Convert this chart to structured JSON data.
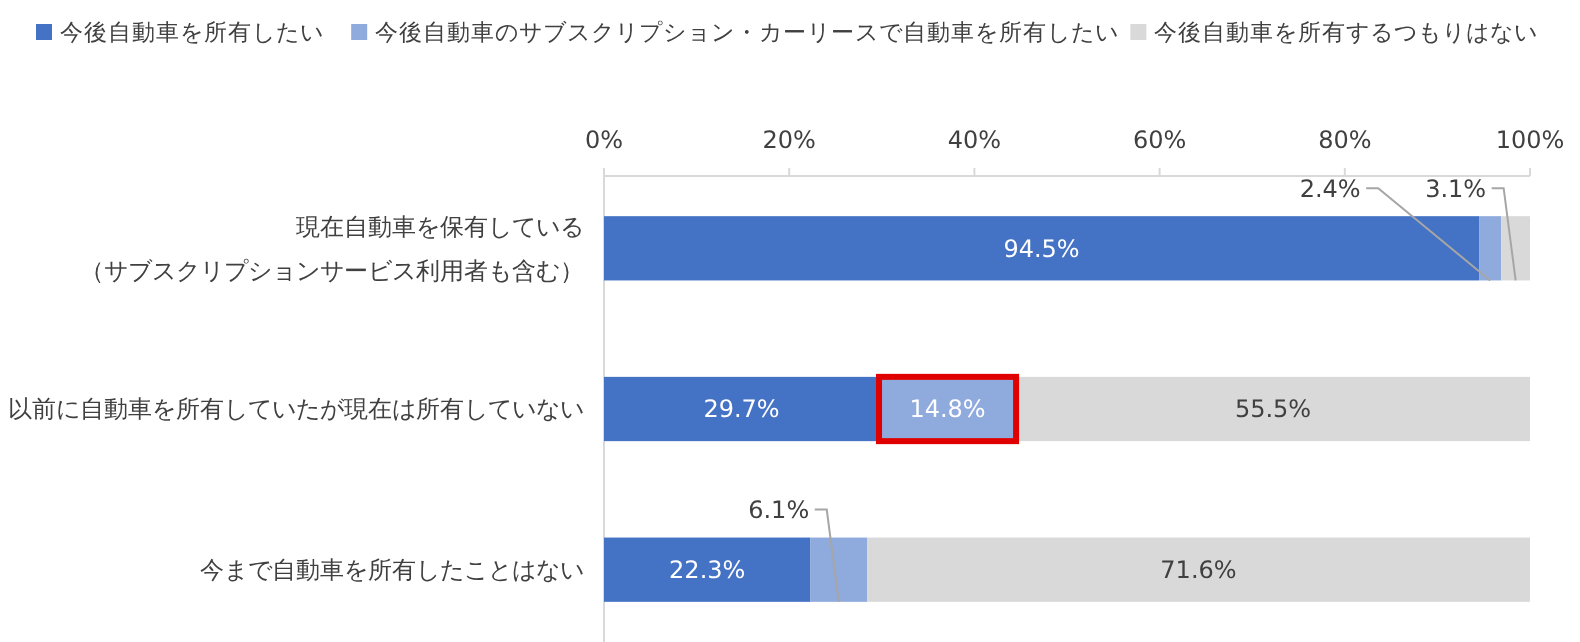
{
  "chart_data": {
    "type": "bar",
    "orientation": "horizontal",
    "stacked": true,
    "categories": [
      "現在自動車を保有している（サブスクリプションサービス利用者も含む）",
      "以前に自動車を所有していたが現在は所有していない",
      "今まで自動車を所有したことはない"
    ],
    "series": [
      {
        "name": "今後自動車を所有したい",
        "color": "#4472c4",
        "values": [
          94.5,
          29.7,
          22.3
        ],
        "value_labels": [
          "94.5%",
          "29.7%",
          "22.3%"
        ]
      },
      {
        "name": "今後自動車のサブスクリプション・カーリースで自動車を所有したい",
        "color": "#8faadc",
        "values": [
          2.4,
          14.8,
          6.1
        ],
        "value_labels": [
          "2.4%",
          "14.8%",
          "6.1%"
        ]
      },
      {
        "name": "今後自動車を所有するつもりはない",
        "color": "#d9d9d9",
        "values": [
          3.1,
          55.5,
          71.6
        ],
        "value_labels": [
          "3.1%",
          "55.5%",
          "71.6%"
        ]
      }
    ],
    "xlim": [
      0,
      100
    ],
    "xticks": [
      {
        "value": 0,
        "label": "0%"
      },
      {
        "value": 20,
        "label": "20%"
      },
      {
        "value": 40,
        "label": "40%"
      },
      {
        "value": 60,
        "label": "60%"
      },
      {
        "value": 80,
        "label": "80%"
      },
      {
        "value": 100,
        "label": "100%"
      }
    ],
    "legend": "top left",
    "grid": false
  }
}
